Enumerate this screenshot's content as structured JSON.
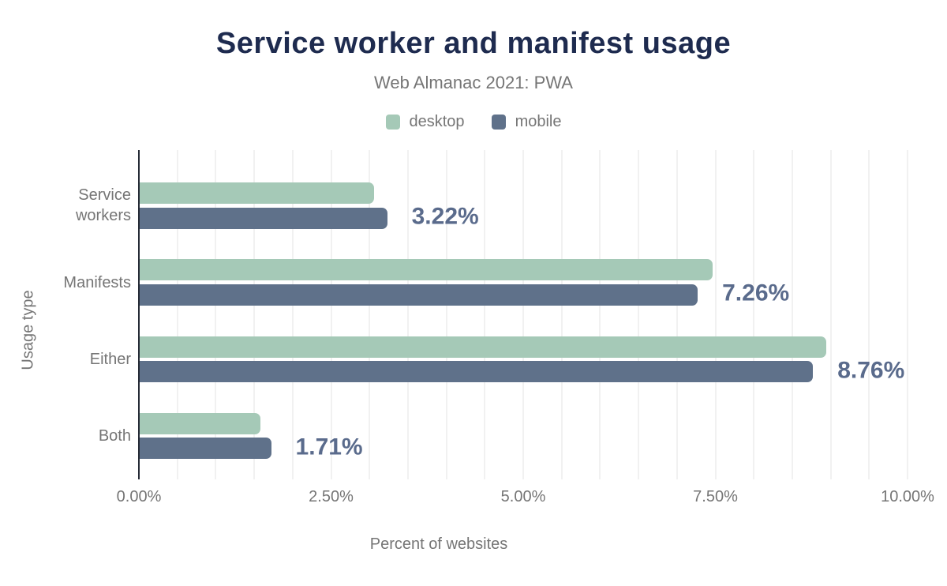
{
  "title": "Service worker and manifest usage",
  "subtitle": "Web Almanac 2021: PWA",
  "legend": [
    {
      "label": "desktop",
      "swatch": "desktop-swatch"
    },
    {
      "label": "mobile",
      "swatch": "mobile-swatch"
    }
  ],
  "colors": {
    "desktop": "#a5c9b7",
    "mobile": "#5f718a",
    "title": "#1e2b4f",
    "muted_text": "#757575",
    "value_label": "#5a6b8c",
    "gridline": "#f1f1f1",
    "axis_line": "#262b36"
  },
  "chart_data": {
    "type": "bar",
    "orientation": "horizontal",
    "title": "Service worker and manifest usage",
    "subtitle": "Web Almanac 2021: PWA",
    "categories": [
      "Service workers",
      "Manifests",
      "Either",
      "Both"
    ],
    "series": [
      {
        "name": "desktop",
        "values": [
          3.05,
          7.45,
          8.93,
          1.57
        ]
      },
      {
        "name": "mobile",
        "values": [
          3.22,
          7.26,
          8.76,
          1.71
        ]
      }
    ],
    "value_labels": [
      "3.22%",
      "7.26%",
      "8.76%",
      "1.71%"
    ],
    "value_labels_series": "mobile",
    "xlabel": "Percent of websites",
    "ylabel": "Usage type",
    "xlim": [
      0,
      10
    ],
    "x_ticks": [
      "0.00%",
      "2.50%",
      "5.00%",
      "7.50%",
      "10.00%"
    ],
    "x_tick_values": [
      0,
      2.5,
      5,
      7.5,
      10
    ],
    "grid": "vertical, every 0.5%",
    "legend_position": "top"
  }
}
